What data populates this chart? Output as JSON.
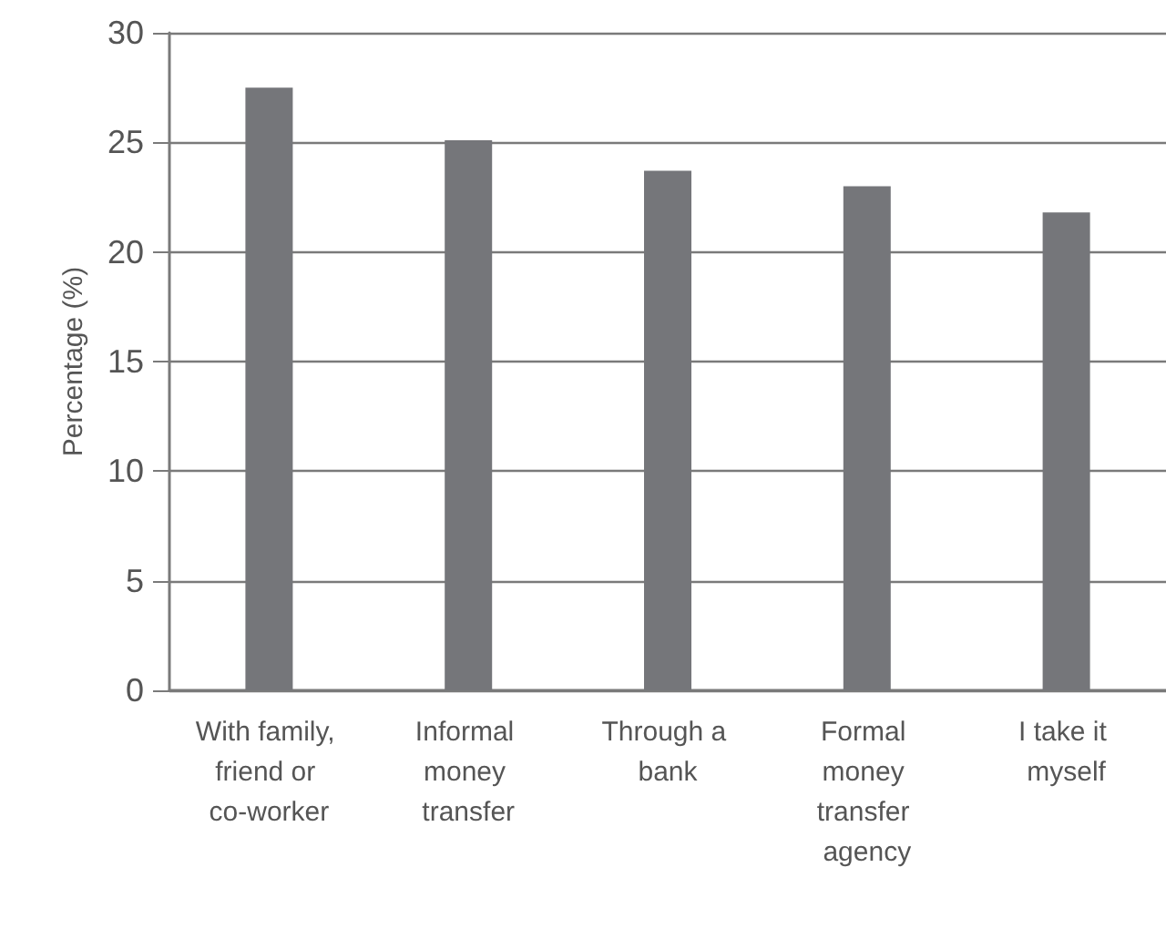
{
  "chart_data": {
    "type": "bar",
    "ylabel": "Percentage (%)",
    "categories": [
      "With family, friend or co-worker",
      "Informal money transfer",
      "Through a bank",
      "Formal money transfer agency",
      "I take it myself"
    ],
    "values": [
      27.5,
      25.1,
      23.7,
      23.0,
      21.8
    ],
    "color": "#75767a",
    "ylim": [
      0,
      30
    ],
    "yticks": [
      0,
      5,
      10,
      15,
      20,
      25,
      30
    ],
    "grid": "y"
  }
}
